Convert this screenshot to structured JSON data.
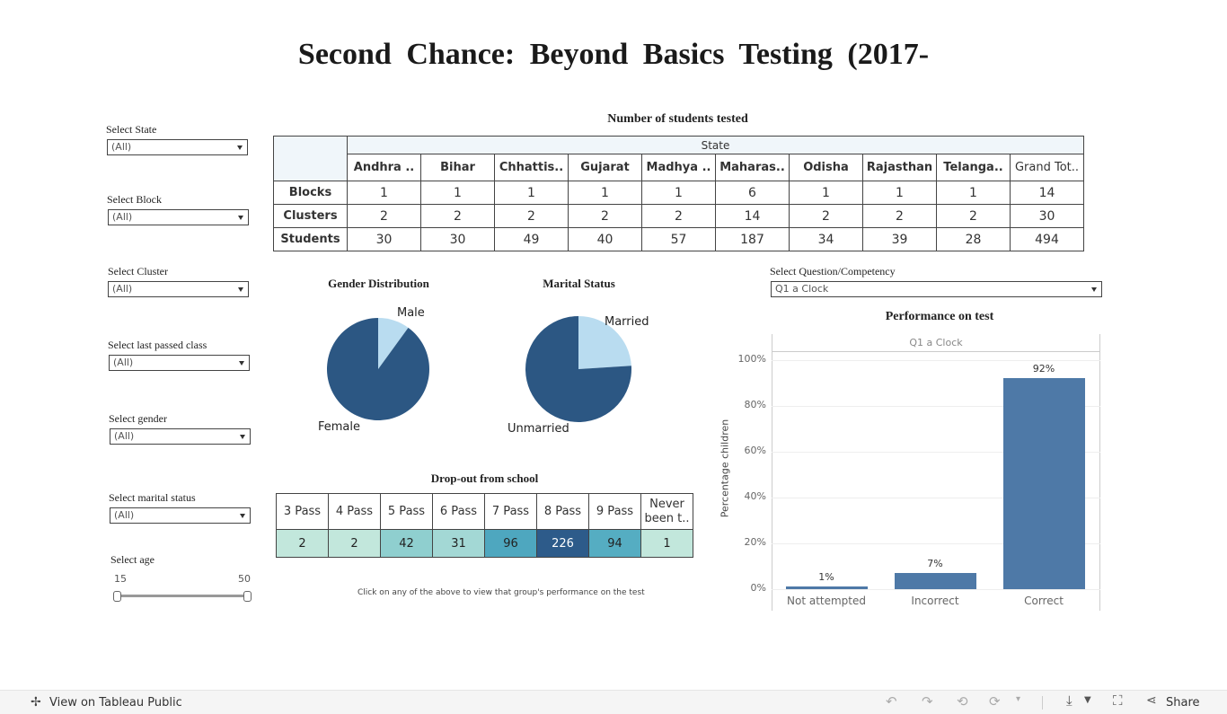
{
  "title": "Second Chance: Beyond Basics Testing (2017-",
  "filters": [
    {
      "label": "Select State",
      "value": "(All)"
    },
    {
      "label": "Select Block",
      "value": "(All)"
    },
    {
      "label": "Select Cluster",
      "value": "(All)"
    },
    {
      "label": "Select last passed class",
      "value": "(All)"
    },
    {
      "label": "Select gender",
      "value": "(All)"
    },
    {
      "label": "Select marital status",
      "value": "(All)"
    }
  ],
  "age_filter": {
    "label": "Select age",
    "min": "15",
    "max": "50"
  },
  "students_table": {
    "title": "Number of students tested",
    "group_header": "State",
    "columns": [
      "Andhra ..",
      "Bihar",
      "Chhattis..",
      "Gujarat",
      "Madhya ..",
      "Maharas..",
      "Odisha",
      "Rajasthan",
      "Telanga..",
      "Grand Tot.."
    ],
    "rows": [
      {
        "label": "Blocks",
        "values": [
          "1",
          "1",
          "1",
          "1",
          "1",
          "6",
          "1",
          "1",
          "1",
          "14"
        ]
      },
      {
        "label": "Clusters",
        "values": [
          "2",
          "2",
          "2",
          "2",
          "2",
          "14",
          "2",
          "2",
          "2",
          "30"
        ]
      },
      {
        "label": "Students",
        "values": [
          "30",
          "30",
          "49",
          "40",
          "57",
          "187",
          "34",
          "39",
          "28",
          "494"
        ]
      }
    ]
  },
  "gender_chart": {
    "title": "Gender Distribution",
    "labels": [
      "Male",
      "Female"
    ],
    "shares": [
      0.1,
      0.9
    ],
    "colors": [
      "#b9dcf0",
      "#2c5783"
    ]
  },
  "marital_chart": {
    "title": "Marital Status",
    "labels": [
      "Married",
      "Unmarried"
    ],
    "shares": [
      0.24,
      0.76
    ],
    "colors": [
      "#b9dcf0",
      "#2c5783"
    ]
  },
  "dropout": {
    "title": "Drop-out from school",
    "headers": [
      "3 Pass",
      "4 Pass",
      "5 Pass",
      "6 Pass",
      "7 Pass",
      "8 Pass",
      "9 Pass",
      "Never been t.."
    ],
    "values": [
      "2",
      "2",
      "42",
      "31",
      "96",
      "226",
      "94",
      "1"
    ],
    "colors": [
      "#c2e7dc",
      "#c2e7dc",
      "#8fcfcf",
      "#a3d8d5",
      "#4ea7bf",
      "#2d5b8a",
      "#55adc2",
      "#c2e7dc"
    ]
  },
  "note": "Click on any of the above to view that group's performance on the test",
  "question_filter": {
    "label": "Select Question/Competency",
    "value": "Q1 a Clock"
  },
  "chart_data": {
    "type": "bar",
    "title": "Performance on test",
    "panel_header": "Q1 a Clock",
    "categories": [
      "Not attempted",
      "Incorrect",
      "Correct"
    ],
    "values": [
      1,
      7,
      92
    ],
    "value_labels": [
      "1%",
      "7%",
      "92%"
    ],
    "ylabel": "Percentage children",
    "yticks": [
      "0%",
      "20%",
      "40%",
      "60%",
      "80%",
      "100%"
    ],
    "ylim": [
      0,
      100
    ],
    "bar_color": "#4e79a7",
    "grid": true
  },
  "footer": {
    "link": "View on Tableau Public",
    "share": "Share"
  }
}
